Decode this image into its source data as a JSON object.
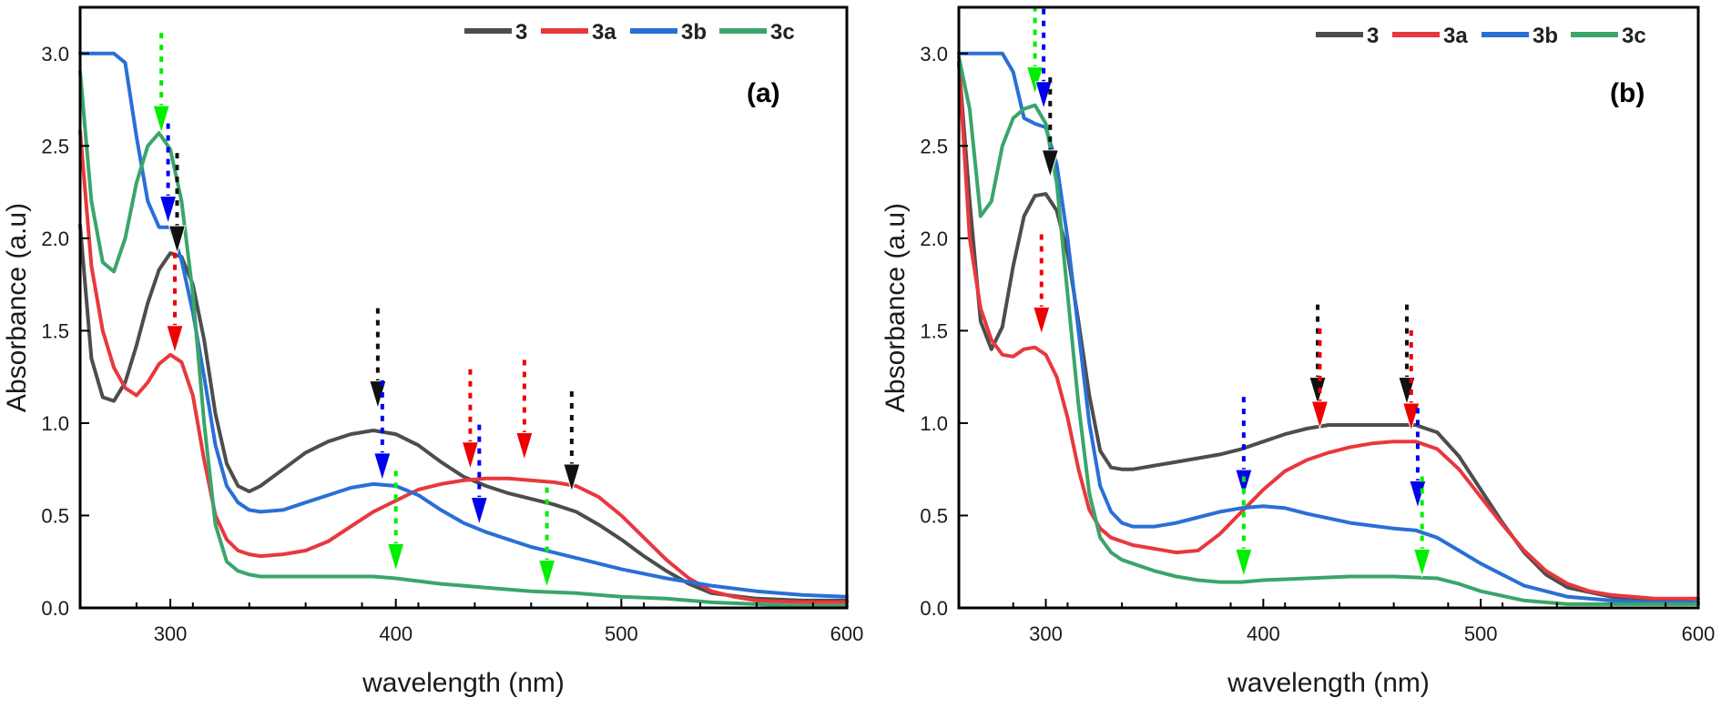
{
  "chart_data": [
    {
      "type": "line",
      "panel_label": "(a)",
      "xlabel": "wavelength (nm)",
      "ylabel": "Absorbance (a.u)",
      "xlim": [
        260,
        600
      ],
      "ylim": [
        0,
        3.25
      ],
      "xticks": [
        300,
        400,
        500,
        600
      ],
      "yticks": [
        0.0,
        0.5,
        1.0,
        1.5,
        2.0,
        2.5,
        3.0
      ],
      "legend_position": "top-right",
      "series": [
        {
          "name": "3",
          "color": "#4d4d4d",
          "x": [
            260,
            265,
            270,
            275,
            280,
            285,
            290,
            295,
            300,
            305,
            310,
            315,
            320,
            325,
            330,
            335,
            340,
            350,
            360,
            370,
            380,
            390,
            400,
            410,
            420,
            430,
            440,
            450,
            460,
            470,
            480,
            490,
            500,
            510,
            520,
            530,
            540,
            560,
            580,
            600
          ],
          "y": [
            2.07,
            1.35,
            1.14,
            1.12,
            1.22,
            1.42,
            1.65,
            1.83,
            1.92,
            1.9,
            1.75,
            1.45,
            1.05,
            0.78,
            0.66,
            0.63,
            0.66,
            0.75,
            0.84,
            0.9,
            0.94,
            0.96,
            0.94,
            0.88,
            0.79,
            0.71,
            0.66,
            0.62,
            0.59,
            0.56,
            0.52,
            0.45,
            0.37,
            0.28,
            0.2,
            0.13,
            0.08,
            0.05,
            0.04,
            0.04
          ]
        },
        {
          "name": "3a",
          "color": "#e8383d",
          "x": [
            260,
            265,
            270,
            275,
            280,
            285,
            290,
            295,
            300,
            305,
            310,
            315,
            320,
            325,
            330,
            335,
            340,
            350,
            360,
            370,
            380,
            390,
            400,
            410,
            420,
            430,
            440,
            450,
            460,
            470,
            480,
            490,
            500,
            510,
            520,
            530,
            540,
            550,
            560,
            580,
            600
          ],
          "y": [
            2.58,
            1.85,
            1.5,
            1.3,
            1.19,
            1.15,
            1.22,
            1.32,
            1.37,
            1.33,
            1.15,
            0.8,
            0.5,
            0.37,
            0.31,
            0.29,
            0.28,
            0.29,
            0.31,
            0.36,
            0.44,
            0.52,
            0.58,
            0.64,
            0.67,
            0.69,
            0.7,
            0.7,
            0.69,
            0.68,
            0.66,
            0.6,
            0.5,
            0.38,
            0.26,
            0.16,
            0.09,
            0.06,
            0.04,
            0.03,
            0.03
          ]
        },
        {
          "name": "3b",
          "color": "#2a6fd6",
          "x": [
            260,
            265,
            270,
            275,
            280,
            285,
            290,
            295,
            300,
            305,
            310,
            315,
            320,
            325,
            330,
            335,
            340,
            350,
            360,
            370,
            380,
            390,
            400,
            410,
            420,
            430,
            440,
            450,
            460,
            470,
            480,
            490,
            500,
            520,
            540,
            560,
            580,
            600
          ],
          "y": [
            3.0,
            3.0,
            3.0,
            3.0,
            2.95,
            2.55,
            2.2,
            2.06,
            2.06,
            1.88,
            1.6,
            1.25,
            0.88,
            0.66,
            0.57,
            0.53,
            0.52,
            0.53,
            0.57,
            0.61,
            0.65,
            0.67,
            0.66,
            0.61,
            0.53,
            0.46,
            0.41,
            0.37,
            0.33,
            0.3,
            0.27,
            0.24,
            0.21,
            0.16,
            0.12,
            0.09,
            0.07,
            0.06
          ]
        },
        {
          "name": "3c",
          "color": "#3aa56b",
          "x": [
            260,
            265,
            270,
            275,
            280,
            285,
            290,
            295,
            300,
            305,
            310,
            315,
            320,
            325,
            330,
            335,
            340,
            350,
            360,
            370,
            380,
            390,
            400,
            420,
            440,
            460,
            480,
            500,
            520,
            540,
            560,
            580,
            600
          ],
          "y": [
            2.9,
            2.2,
            1.87,
            1.82,
            2.0,
            2.3,
            2.5,
            2.57,
            2.48,
            2.2,
            1.7,
            1.0,
            0.45,
            0.25,
            0.2,
            0.18,
            0.17,
            0.17,
            0.17,
            0.17,
            0.17,
            0.17,
            0.16,
            0.13,
            0.11,
            0.09,
            0.08,
            0.06,
            0.05,
            0.03,
            0.02,
            0.01,
            0.01
          ]
        }
      ],
      "markers": [
        {
          "color": "#00ee00",
          "x": 296,
          "y": 2.57
        },
        {
          "color": "#0000ee",
          "x": 299,
          "y": 2.08
        },
        {
          "color": "#111111",
          "x": 303,
          "y": 1.92
        },
        {
          "color": "#ee0000",
          "x": 302,
          "y": 1.38
        },
        {
          "color": "#111111",
          "x": 392,
          "y": 1.08
        },
        {
          "color": "#0000ee",
          "x": 394,
          "y": 0.69
        },
        {
          "color": "#00ee00",
          "x": 400,
          "y": 0.2
        },
        {
          "color": "#ee0000",
          "x": 433,
          "y": 0.75
        },
        {
          "color": "#0000ee",
          "x": 437,
          "y": 0.45
        },
        {
          "color": "#ee0000",
          "x": 457,
          "y": 0.8
        },
        {
          "color": "#00ee00",
          "x": 467,
          "y": 0.11
        },
        {
          "color": "#111111",
          "x": 478,
          "y": 0.63
        }
      ]
    },
    {
      "type": "line",
      "panel_label": "(b)",
      "xlabel": "wavelength (nm)",
      "ylabel": "Absorbance (a.u)",
      "xlim": [
        260,
        600
      ],
      "ylim": [
        0,
        3.25
      ],
      "xticks": [
        300,
        400,
        500,
        600
      ],
      "yticks": [
        0.0,
        0.5,
        1.0,
        1.5,
        2.0,
        2.5,
        3.0
      ],
      "legend_position": "top-right",
      "series": [
        {
          "name": "3",
          "color": "#4d4d4d",
          "x": [
            260,
            265,
            270,
            275,
            280,
            285,
            290,
            295,
            300,
            305,
            310,
            315,
            320,
            325,
            330,
            335,
            340,
            350,
            360,
            370,
            380,
            390,
            400,
            410,
            420,
            430,
            440,
            450,
            460,
            470,
            480,
            490,
            500,
            510,
            520,
            530,
            540,
            560,
            580,
            600
          ],
          "y": [
            2.95,
            2.2,
            1.55,
            1.4,
            1.52,
            1.85,
            2.12,
            2.23,
            2.24,
            2.15,
            1.92,
            1.55,
            1.15,
            0.85,
            0.76,
            0.75,
            0.75,
            0.77,
            0.79,
            0.81,
            0.83,
            0.86,
            0.9,
            0.94,
            0.97,
            0.99,
            0.99,
            0.99,
            0.99,
            0.99,
            0.95,
            0.82,
            0.64,
            0.46,
            0.3,
            0.18,
            0.11,
            0.06,
            0.04,
            0.03
          ]
        },
        {
          "name": "3a",
          "color": "#e8383d",
          "x": [
            260,
            265,
            270,
            275,
            280,
            285,
            290,
            295,
            300,
            305,
            310,
            315,
            320,
            325,
            330,
            335,
            340,
            350,
            360,
            370,
            380,
            390,
            400,
            410,
            420,
            430,
            440,
            450,
            460,
            470,
            480,
            490,
            500,
            510,
            520,
            530,
            540,
            550,
            560,
            580,
            600
          ],
          "y": [
            2.95,
            2.0,
            1.62,
            1.45,
            1.37,
            1.36,
            1.4,
            1.41,
            1.37,
            1.25,
            1.03,
            0.75,
            0.53,
            0.43,
            0.38,
            0.36,
            0.34,
            0.32,
            0.3,
            0.31,
            0.4,
            0.52,
            0.64,
            0.74,
            0.8,
            0.84,
            0.87,
            0.89,
            0.9,
            0.9,
            0.86,
            0.75,
            0.6,
            0.45,
            0.31,
            0.2,
            0.13,
            0.09,
            0.07,
            0.05,
            0.05
          ]
        },
        {
          "name": "3b",
          "color": "#2a6fd6",
          "x": [
            260,
            265,
            270,
            275,
            280,
            285,
            290,
            295,
            300,
            305,
            310,
            315,
            320,
            325,
            330,
            335,
            340,
            350,
            360,
            370,
            380,
            390,
            400,
            410,
            420,
            440,
            460,
            470,
            480,
            490,
            500,
            520,
            540,
            560,
            580,
            600
          ],
          "y": [
            3.0,
            3.0,
            3.0,
            3.0,
            3.0,
            2.9,
            2.65,
            2.62,
            2.6,
            2.4,
            2.0,
            1.5,
            1.0,
            0.66,
            0.52,
            0.46,
            0.44,
            0.44,
            0.46,
            0.49,
            0.52,
            0.54,
            0.55,
            0.54,
            0.51,
            0.46,
            0.43,
            0.42,
            0.38,
            0.31,
            0.24,
            0.12,
            0.06,
            0.04,
            0.03,
            0.03
          ]
        },
        {
          "name": "3c",
          "color": "#3aa56b",
          "x": [
            260,
            265,
            270,
            275,
            280,
            285,
            290,
            295,
            300,
            305,
            310,
            315,
            320,
            325,
            330,
            335,
            340,
            350,
            360,
            370,
            380,
            390,
            400,
            420,
            440,
            460,
            480,
            490,
            500,
            520,
            540,
            560,
            580,
            600
          ],
          "y": [
            2.98,
            2.7,
            2.12,
            2.2,
            2.5,
            2.65,
            2.7,
            2.72,
            2.62,
            2.3,
            1.7,
            1.1,
            0.62,
            0.38,
            0.3,
            0.26,
            0.24,
            0.2,
            0.17,
            0.15,
            0.14,
            0.14,
            0.15,
            0.16,
            0.17,
            0.17,
            0.16,
            0.13,
            0.09,
            0.04,
            0.02,
            0.02,
            0.02,
            0.02
          ]
        }
      ],
      "markers": [
        {
          "color": "#00ee00",
          "x": 295,
          "y": 2.78
        },
        {
          "color": "#0000ee",
          "x": 299,
          "y": 2.7
        },
        {
          "color": "#111111",
          "x": 302,
          "y": 2.33
        },
        {
          "color": "#ee0000",
          "x": 298,
          "y": 1.48
        },
        {
          "color": "#111111",
          "x": 425,
          "y": 1.1
        },
        {
          "color": "#ee0000",
          "x": 426,
          "y": 0.97
        },
        {
          "color": "#0000ee",
          "x": 391,
          "y": 0.6
        },
        {
          "color": "#00ee00",
          "x": 391,
          "y": 0.17
        },
        {
          "color": "#111111",
          "x": 466,
          "y": 1.1
        },
        {
          "color": "#ee0000",
          "x": 468,
          "y": 0.96
        },
        {
          "color": "#0000ee",
          "x": 471,
          "y": 0.54
        },
        {
          "color": "#00ee00",
          "x": 473,
          "y": 0.17
        }
      ]
    }
  ]
}
